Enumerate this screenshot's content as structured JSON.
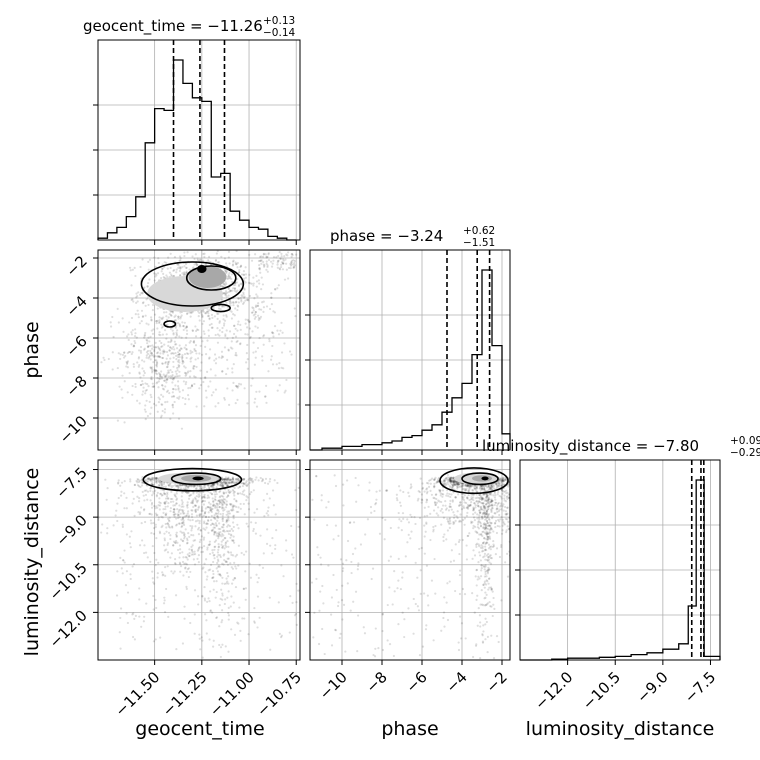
{
  "chart_data": {
    "type": "corner",
    "parameters": [
      "geocent_time",
      "phase",
      "luminosity_distance"
    ],
    "titles": [
      {
        "name": "geocent_time",
        "median": "−11.26",
        "plus": "+0.13",
        "minus": "−0.14"
      },
      {
        "name": "phase",
        "median": "−3.24",
        "plus": "+0.62",
        "minus": "−1.51"
      },
      {
        "name": "luminosity_distance",
        "median": "−7.80",
        "plus": "+0.09",
        "minus": "−0.29"
      }
    ],
    "ranges": [
      [
        -11.8,
        -10.73
      ],
      [
        -11.6,
        -1.6
      ],
      [
        -13.5,
        -7.2
      ]
    ],
    "ticks": {
      "geocent_time": [
        "−11.50",
        "−11.25",
        "−11.00",
        "−10.75"
      ],
      "phase": [
        "−10",
        "−8",
        "−6",
        "−4",
        "−2"
      ],
      "luminosity_distance": [
        "−12.0",
        "−10.5",
        "−9.0",
        "−7.5"
      ]
    },
    "tick_values": {
      "geocent_time": [
        -11.5,
        -11.25,
        -11.0,
        -10.75
      ],
      "phase": [
        -10,
        -8,
        -6,
        -4,
        -2
      ],
      "luminosity_distance": [
        -12.0,
        -10.5,
        -9.0,
        -7.5
      ]
    },
    "quantiles": {
      "geocent_time": [
        -11.4,
        -11.26,
        -11.13
      ],
      "phase": [
        -4.75,
        -3.24,
        -2.62
      ],
      "luminosity_distance": [
        -8.09,
        -7.8,
        -7.71
      ]
    },
    "histograms": {
      "geocent_time": {
        "edges": [
          -11.8,
          -11.75,
          -11.7,
          -11.65,
          -11.6,
          -11.55,
          -11.5,
          -11.45,
          -11.4,
          -11.35,
          -11.3,
          -11.25,
          -11.2,
          -11.15,
          -11.1,
          -11.05,
          -11.0,
          -10.95,
          -10.9,
          -10.85,
          -10.8,
          -10.75
        ],
        "counts": [
          0.01,
          0.04,
          0.07,
          0.13,
          0.24,
          0.54,
          0.73,
          0.72,
          1.0,
          0.87,
          0.79,
          0.77,
          0.35,
          0.37,
          0.16,
          0.11,
          0.07,
          0.06,
          0.02,
          0.01,
          0.0
        ]
      },
      "phase": {
        "edges": [
          -11.6,
          -11.0,
          -10.5,
          -10.0,
          -9.5,
          -9.0,
          -8.5,
          -8.0,
          -7.5,
          -7.0,
          -6.5,
          -6.0,
          -5.5,
          -5.0,
          -4.5,
          -4.0,
          -3.5,
          -3.0,
          -2.5,
          -2.0,
          -1.6
        ],
        "counts": [
          0.0,
          0.01,
          0.01,
          0.02,
          0.02,
          0.03,
          0.03,
          0.04,
          0.05,
          0.07,
          0.08,
          0.11,
          0.14,
          0.21,
          0.29,
          0.37,
          0.53,
          1.0,
          0.58,
          0.09
        ]
      },
      "luminosity_distance": {
        "edges": [
          -13.5,
          -13.0,
          -12.5,
          -12.0,
          -11.5,
          -11.0,
          -10.5,
          -10.0,
          -9.5,
          -9.0,
          -8.5,
          -8.2,
          -7.95,
          -7.7,
          -7.2
        ],
        "counts": [
          0.0,
          0.0,
          0.005,
          0.01,
          0.01,
          0.015,
          0.02,
          0.03,
          0.04,
          0.06,
          0.09,
          0.3,
          1.0,
          0.02
        ]
      }
    },
    "grid": true
  }
}
